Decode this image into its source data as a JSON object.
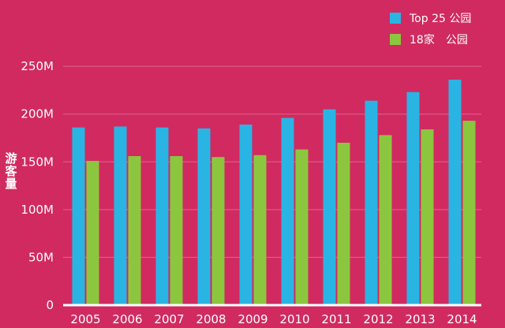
{
  "chart_data": {
    "type": "bar",
    "title": "",
    "xlabel": "",
    "ylabel": "游客量",
    "ylim": [
      0,
      260000000
    ],
    "yticks": [
      {
        "value": 0,
        "label": "0"
      },
      {
        "value": 50000000,
        "label": "50M"
      },
      {
        "value": 100000000,
        "label": "100M"
      },
      {
        "value": 150000000,
        "label": "150M"
      },
      {
        "value": 200000000,
        "label": "200M"
      },
      {
        "value": 250000000,
        "label": "250M"
      }
    ],
    "categories": [
      "2005",
      "2006",
      "2007",
      "2008",
      "2009",
      "2010",
      "2011",
      "2012",
      "2013",
      "2014"
    ],
    "series": [
      {
        "name": "Top 25 公园",
        "color": "#2ab4e4",
        "values": [
          186000000,
          187000000,
          186000000,
          185000000,
          189000000,
          196000000,
          205000000,
          214000000,
          223000000,
          236000000
        ]
      },
      {
        "name": "18家　公园",
        "color": "#8cc63e",
        "values": [
          151000000,
          156000000,
          156000000,
          155000000,
          157000000,
          163000000,
          170000000,
          178000000,
          184000000,
          193000000
        ]
      }
    ],
    "grid": true,
    "legend_position": "top-right"
  }
}
